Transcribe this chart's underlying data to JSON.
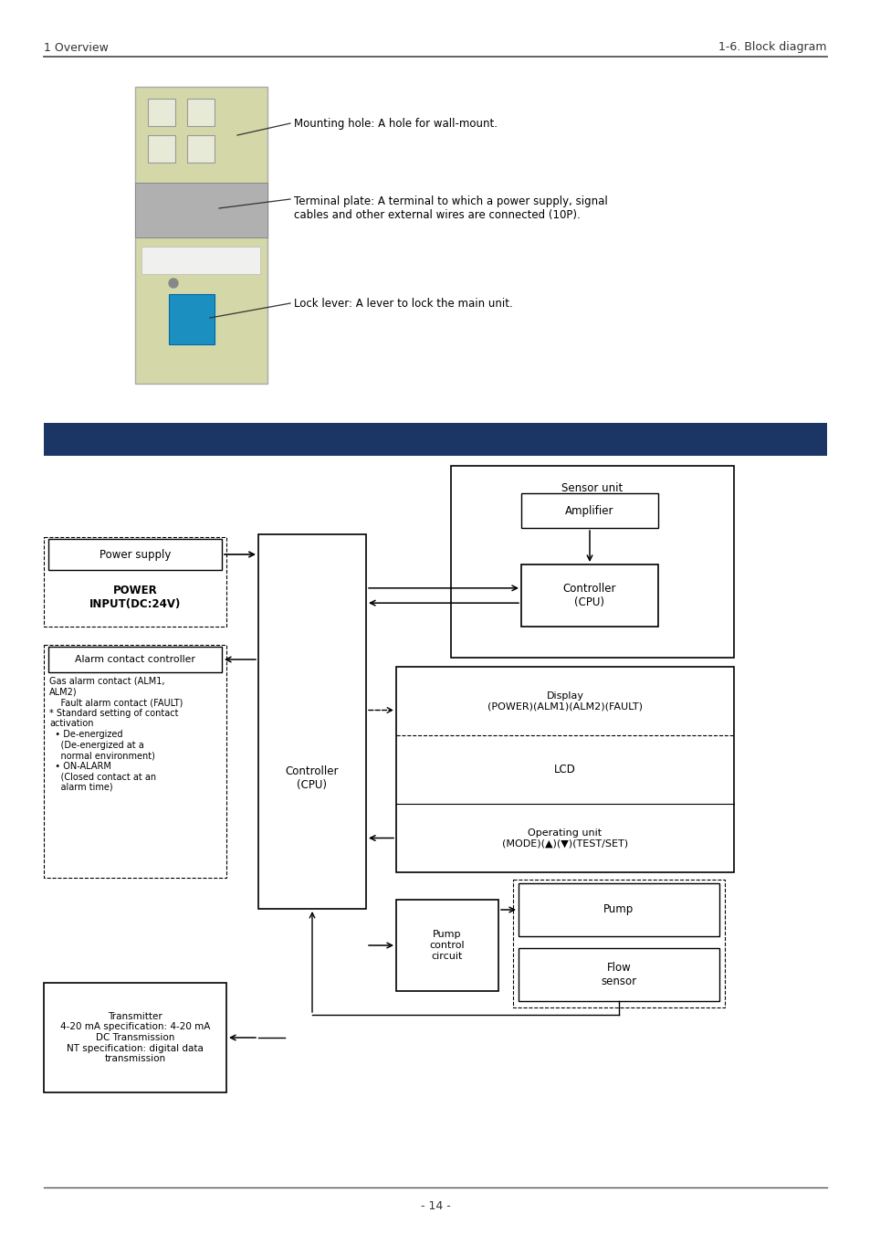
{
  "page_header_left": "1 Overview",
  "page_header_right": "1-6. Block diagram",
  "page_footer": "- 14 -",
  "bg_color": "#ffffff",
  "blue_banner_color": "#1b3565",
  "text_color": "#000000",
  "header_color": "#222222",
  "sensor_label": "Sensor unit",
  "amplifier_label": "Amplifier",
  "controller_cpu_label": "Controller\n(CPU)",
  "controller_main_label": "Controller\n(CPU)",
  "power_supply_label": "Power supply",
  "power_input_label": "POWER\nINPUT(DC:24V)",
  "alarm_label": "Alarm contact controller",
  "alarm_detail": "Gas alarm contact (ALM1,\nALM2)\n    Fault alarm contact (FAULT)\n* Standard setting of contact\nactivation\n  • De-energized\n    (De-energized at a\n    normal environment)\n  • ON-ALARM\n    (Closed contact at an\n    alarm time)",
  "display_label": "Display\n(POWER)(ALM1)(ALM2)(FAULT)",
  "lcd_label": "LCD",
  "operating_label": "Operating unit\n(MODE)(▲)(▼)(TEST/SET)",
  "pump_control_label": "Pump\ncontrol\ncircuit",
  "pump_label": "Pump",
  "flow_sensor_label": "Flow\nsensor",
  "transmitter_label": "Transmitter\n4-20 mA specification: 4-20 mA\nDC Transmission\nNT specification: digital data\ntransmission",
  "ann1": "Mounting hole: A hole for wall-mount.",
  "ann2": "Terminal plate: A terminal to which a power supply, signal\ncables and other external wires are connected (10P).",
  "ann3": "Lock lever: A lever to lock the main unit."
}
